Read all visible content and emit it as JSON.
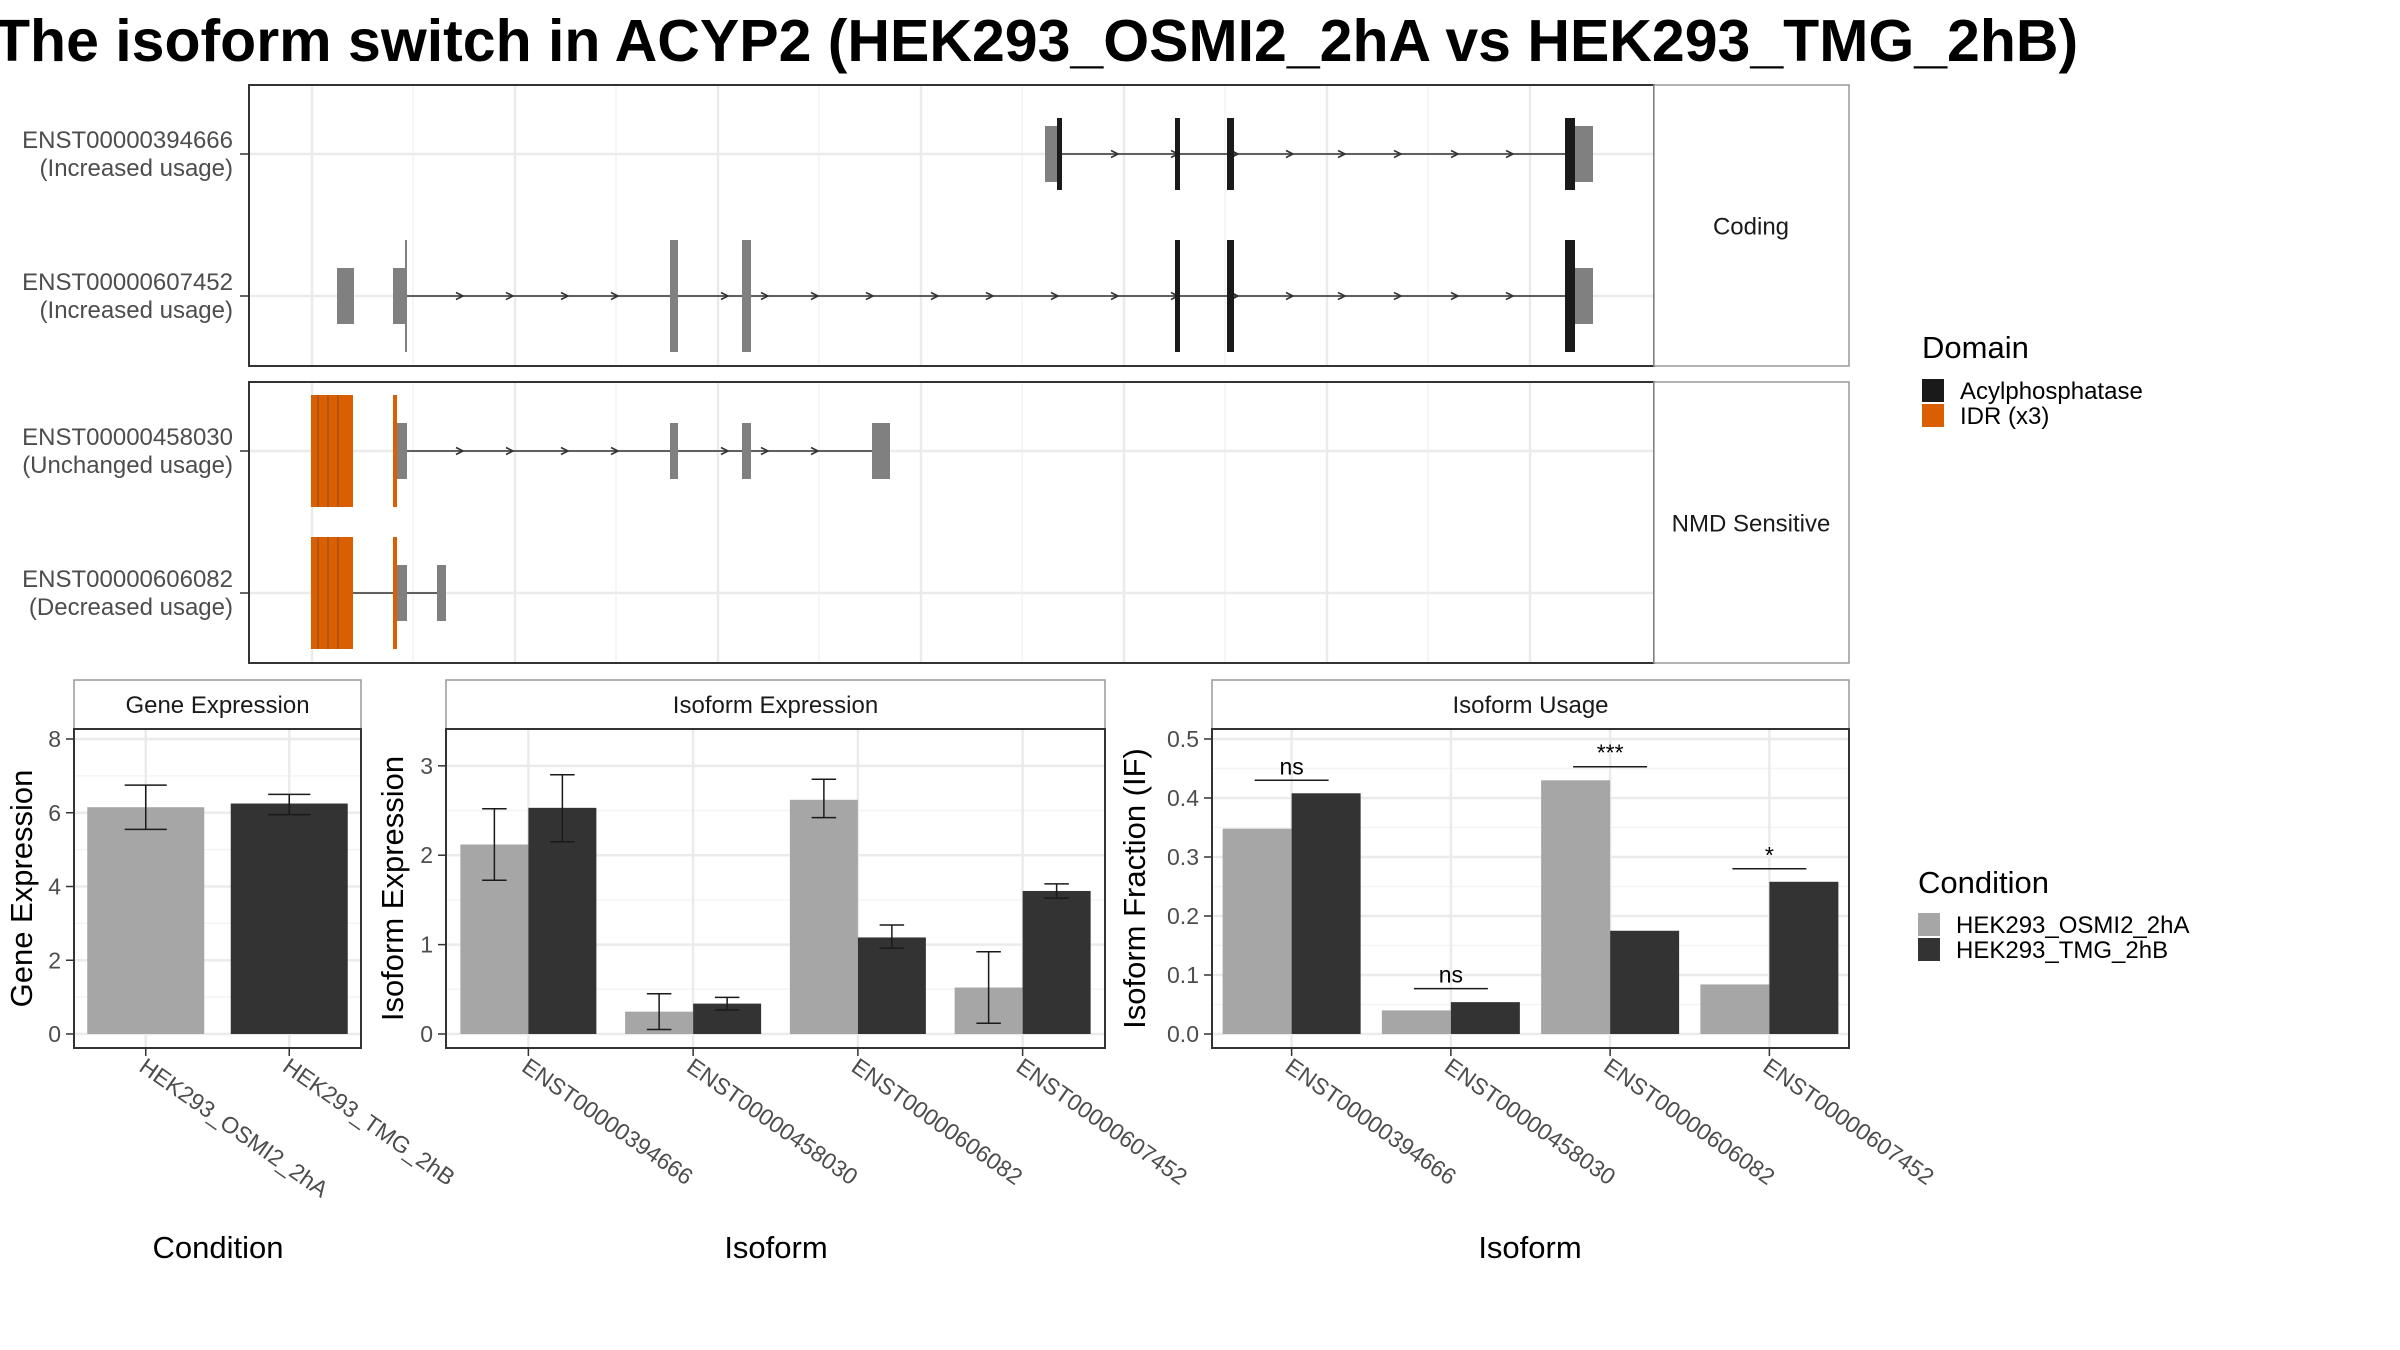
{
  "title": "The isoform switch in ACYP2 (HEK293_OSMI2_2hA vs HEK293_TMG_2hB)",
  "colors": {
    "domain_acylphosphatase": "#1a1a1a",
    "domain_idr": "#d95f02",
    "exon": "#808080",
    "condition_a": "#a6a6a6",
    "condition_b": "#333333"
  },
  "structure": {
    "facets": [
      {
        "label": "Coding",
        "transcripts": [
          {
            "id": "ENST00000394666",
            "usage": "(Increased usage)"
          },
          {
            "id": "ENST00000607452",
            "usage": "(Increased usage)"
          }
        ]
      },
      {
        "label": "NMD Sensitive",
        "transcripts": [
          {
            "id": "ENST00000458030",
            "usage": "(Unchanged usage)"
          },
          {
            "id": "ENST00000606082",
            "usage": "(Decreased usage)"
          }
        ]
      }
    ]
  },
  "legends": {
    "domain": {
      "title": "Domain",
      "items": [
        "Acylphosphatase",
        "IDR (x3)"
      ]
    },
    "condition": {
      "title": "Condition",
      "items": [
        "HEK293_OSMI2_2hA",
        "HEK293_TMG_2hB"
      ]
    }
  },
  "chart_data": [
    {
      "type": "bar",
      "title": "Gene Expression",
      "xlabel": "Condition",
      "ylabel": "Gene Expression",
      "ylim": [
        0,
        8
      ],
      "yticks": [
        0,
        2,
        4,
        6,
        8
      ],
      "categories": [
        "HEK293_OSMI2_2hA",
        "HEK293_TMG_2hB"
      ],
      "values": [
        6.15,
        6.25
      ],
      "error": [
        [
          5.55,
          6.75
        ],
        [
          5.95,
          6.5
        ]
      ]
    },
    {
      "type": "bar",
      "title": "Isoform Expression",
      "xlabel": "Isoform",
      "ylabel": "Isoform Expression",
      "ylim": [
        0,
        3.3
      ],
      "yticks": [
        0,
        1,
        2,
        3
      ],
      "categories": [
        "ENST00000394666",
        "ENST00000458030",
        "ENST00000606082",
        "ENST00000607452"
      ],
      "series": [
        {
          "name": "HEK293_OSMI2_2hA",
          "values": [
            2.12,
            0.25,
            2.62,
            0.52
          ],
          "error": [
            [
              1.72,
              2.52
            ],
            [
              0.05,
              0.45
            ],
            [
              2.42,
              2.85
            ],
            [
              0.12,
              0.92
            ]
          ]
        },
        {
          "name": "HEK293_TMG_2hB",
          "values": [
            2.53,
            0.34,
            1.08,
            1.6
          ],
          "error": [
            [
              2.15,
              2.9
            ],
            [
              0.27,
              0.41
            ],
            [
              0.96,
              1.22
            ],
            [
              1.52,
              1.68
            ]
          ]
        }
      ]
    },
    {
      "type": "bar",
      "title": "Isoform Usage",
      "xlabel": "Isoform",
      "ylabel": "Isoform Fraction (IF)",
      "ylim": [
        0,
        0.5
      ],
      "yticks": [
        0.0,
        0.1,
        0.2,
        0.3,
        0.4,
        0.5
      ],
      "ytick_labels": [
        "0.0",
        "0.1",
        "0.2",
        "0.3",
        "0.4",
        "0.5"
      ],
      "categories": [
        "ENST00000394666",
        "ENST00000458030",
        "ENST00000606082",
        "ENST00000607452"
      ],
      "series": [
        {
          "name": "HEK293_OSMI2_2hA",
          "values": [
            0.348,
            0.04,
            0.43,
            0.084
          ]
        },
        {
          "name": "HEK293_TMG_2hB",
          "values": [
            0.408,
            0.054,
            0.175,
            0.258
          ]
        }
      ],
      "significance": [
        {
          "category": "ENST00000394666",
          "label": "ns",
          "y": 0.43
        },
        {
          "category": "ENST00000458030",
          "label": "ns",
          "y": 0.077
        },
        {
          "category": "ENST00000606082",
          "label": "***",
          "y": 0.453
        },
        {
          "category": "ENST00000607452",
          "label": "*",
          "y": 0.28
        }
      ]
    }
  ]
}
